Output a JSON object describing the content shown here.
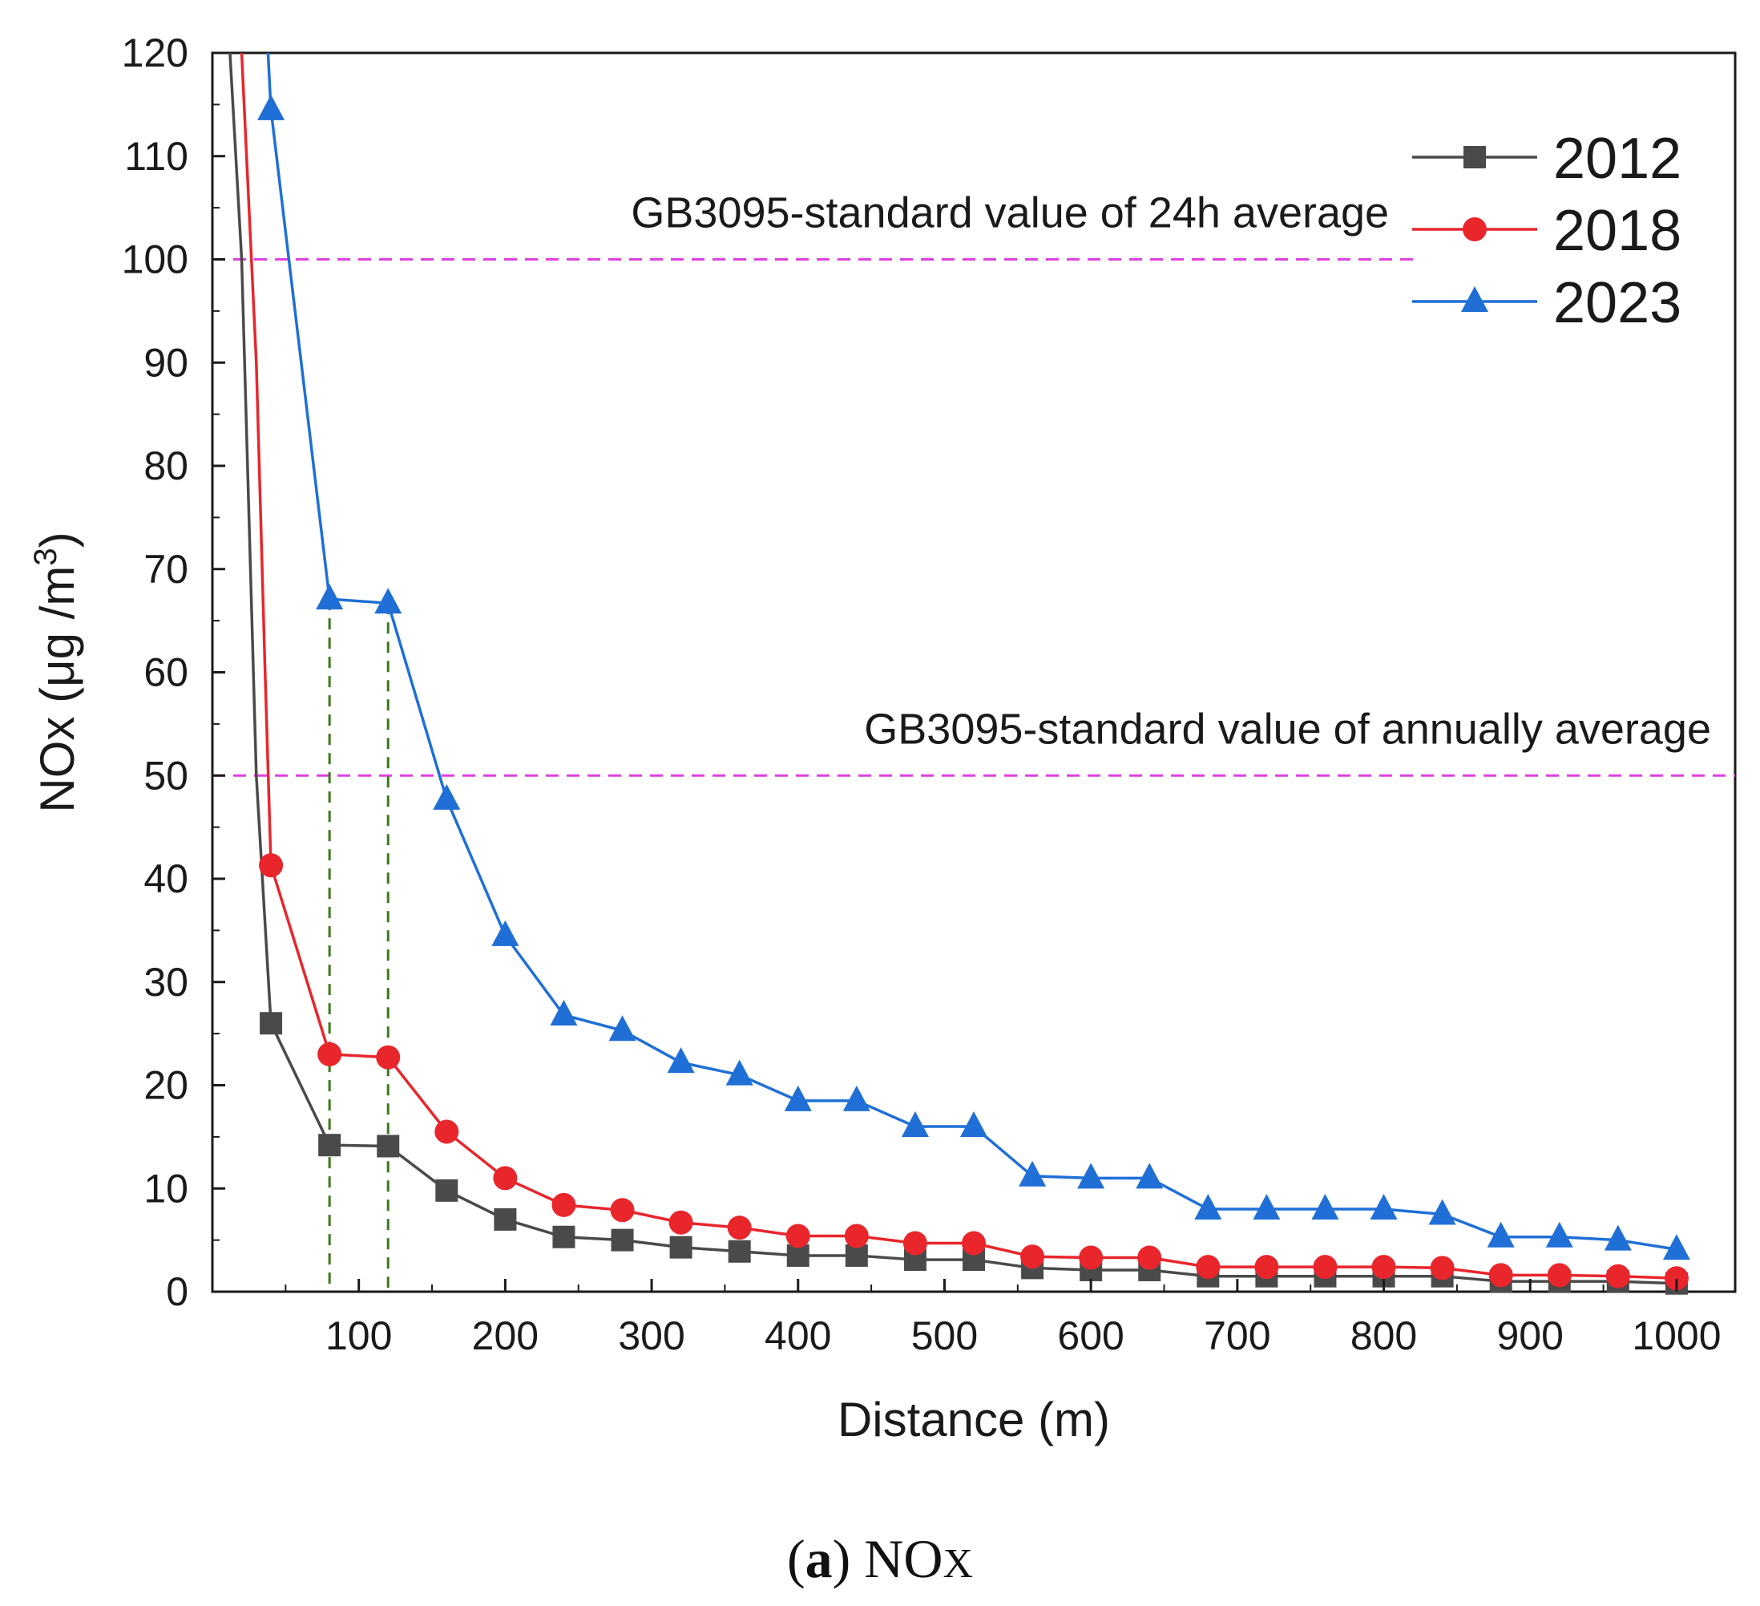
{
  "chart_data": {
    "type": "line",
    "xlabel": "Distance (m)",
    "ylabel": "NOx (μg /m",
    "ylabel_sup": "3",
    "ylabel_close": ")",
    "xlim": [
      0,
      1040
    ],
    "ylim": [
      0,
      120
    ],
    "xticks": [
      100,
      200,
      300,
      400,
      500,
      600,
      700,
      800,
      900,
      1000
    ],
    "yticks": [
      0,
      10,
      20,
      30,
      40,
      50,
      60,
      70,
      80,
      90,
      100,
      110,
      120
    ],
    "x": [
      40,
      80,
      120,
      160,
      200,
      240,
      280,
      320,
      360,
      400,
      440,
      480,
      520,
      560,
      600,
      640,
      680,
      720,
      760,
      800,
      840,
      880,
      920,
      960,
      1000
    ],
    "series": [
      {
        "name": "2012",
        "color": "#4a4a4a",
        "marker": "square",
        "pre": [
          [
            12,
            120
          ],
          [
            20,
            100
          ],
          [
            30,
            50
          ]
        ],
        "values": [
          26.0,
          14.2,
          14.1,
          9.8,
          7.0,
          5.3,
          5.0,
          4.3,
          3.9,
          3.5,
          3.5,
          3.1,
          3.1,
          2.3,
          2.1,
          2.1,
          1.5,
          1.5,
          1.5,
          1.5,
          1.5,
          1.0,
          1.0,
          1.0,
          0.8
        ]
      },
      {
        "name": "2018",
        "color": "#e8262c",
        "marker": "circle",
        "pre": [
          [
            20,
            120
          ],
          [
            30,
            90
          ],
          [
            36,
            60
          ]
        ],
        "values": [
          41.3,
          23.0,
          22.7,
          15.5,
          11.0,
          8.4,
          7.9,
          6.7,
          6.2,
          5.4,
          5.4,
          4.7,
          4.7,
          3.4,
          3.3,
          3.3,
          2.4,
          2.4,
          2.4,
          2.4,
          2.3,
          1.6,
          1.6,
          1.5,
          1.3
        ]
      },
      {
        "name": "2023",
        "color": "#1f6fd6",
        "marker": "triangle",
        "pre": [
          [
            38,
            120
          ]
        ],
        "values": [
          114.5,
          67.1,
          66.7,
          47.7,
          34.5,
          26.8,
          25.3,
          22.2,
          21.0,
          18.5,
          18.5,
          16.0,
          16.0,
          11.2,
          11.0,
          11.0,
          8.0,
          8.0,
          8.0,
          8.0,
          7.5,
          5.3,
          5.3,
          5.0,
          4.1
        ]
      }
    ],
    "reference_lines": [
      {
        "y": 100,
        "label": "GB3095-standard value of 24h average",
        "color": "#e040e0",
        "x_end": 820
      },
      {
        "y": 50,
        "label": "GB3095-standard value of annually average",
        "color": "#e040e0",
        "x_end": 1040
      }
    ],
    "vertical_guides": [
      {
        "x": 80,
        "y_top": 67.1,
        "color": "#3a7a1a"
      },
      {
        "x": 120,
        "y_top": 66.7,
        "color": "#3a7a1a"
      }
    ],
    "legend_position": "top-right"
  },
  "caption": {
    "label": "a",
    "text": " NO",
    "sub": "X"
  }
}
